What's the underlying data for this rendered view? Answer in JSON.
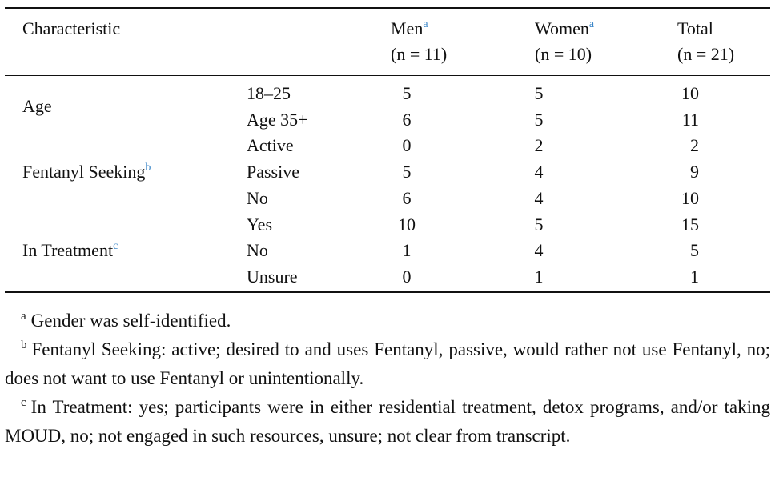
{
  "header": {
    "characteristic": "Characteristic",
    "columns": [
      {
        "name": "Men",
        "note": "a",
        "n": "(n = 11)"
      },
      {
        "name": "Women",
        "note": "a",
        "n": "(n = 10)"
      },
      {
        "name": "Total",
        "n": "(n = 21)"
      }
    ]
  },
  "groups": [
    {
      "label": "Age",
      "rows": [
        {
          "level": "18–25",
          "values": [
            5,
            5,
            10
          ]
        },
        {
          "level": "Age 35+",
          "values": [
            6,
            5,
            11
          ]
        }
      ]
    },
    {
      "label": "Fentanyl Seeking",
      "note": "b",
      "rows": [
        {
          "level": "Active",
          "values": [
            0,
            2,
            2
          ]
        },
        {
          "level": "Passive",
          "values": [
            5,
            4,
            9
          ]
        },
        {
          "level": "No",
          "values": [
            6,
            4,
            10
          ]
        }
      ]
    },
    {
      "label": "In Treatment",
      "note": "c",
      "rows": [
        {
          "level": "Yes",
          "values": [
            10,
            5,
            15
          ]
        },
        {
          "level": "No",
          "values": [
            1,
            4,
            5
          ]
        },
        {
          "level": "Unsure",
          "values": [
            0,
            1,
            1
          ]
        }
      ]
    }
  ],
  "footnotes": [
    {
      "mark": "a",
      "text": "Gender was self-identified."
    },
    {
      "mark": "b",
      "text": "Fentanyl Seeking: active; desired to and uses Fentanyl, passive, would rather not use Fentanyl, no; does not want to use Fentanyl or unintentionally."
    },
    {
      "mark": "c",
      "text": "In Treatment: yes; participants were in either residential treatment, detox programs, and/or taking MOUD, no; not engaged in such resources, unsure; not clear from transcript."
    }
  ]
}
